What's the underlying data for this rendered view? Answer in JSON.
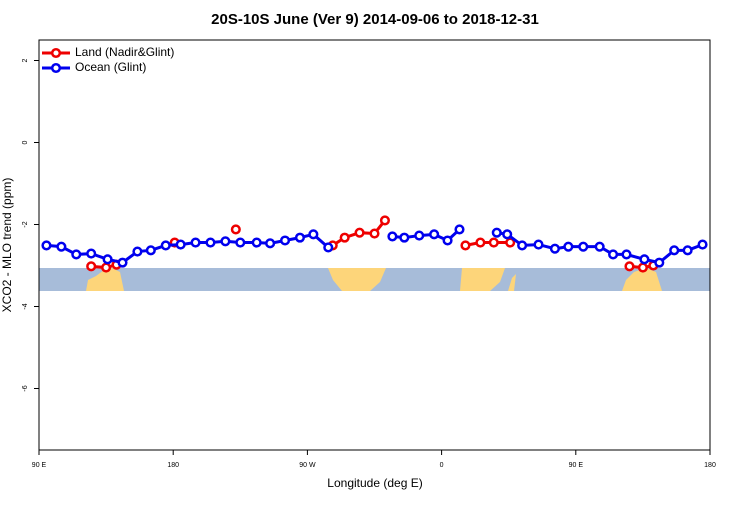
{
  "chart_data": {
    "type": "line",
    "title": "20S-10S June (Ver 9)   2014-09-06 to 2018-12-31",
    "x_label": "Longitude (deg E)",
    "y_label": "XCO2 - MLO trend (ppm)",
    "xlim": [
      90,
      540
    ],
    "ylim": [
      -7.5,
      2.5
    ],
    "xticks": [
      {
        "value": 90,
        "label": "90 E"
      },
      180,
      {
        "value": 270,
        "label": "90 W"
      },
      {
        "value": 360,
        "label": "0"
      },
      {
        "value": 450,
        "label": "90 E"
      },
      180
    ],
    "yticks": [
      2,
      0,
      -2,
      -4,
      -6
    ],
    "legend": "top-left",
    "series": [
      {
        "name": "Land (Nadir&Glint)",
        "color": "#ee0000",
        "x": [
          125,
          135,
          142,
          160,
          181,
          200,
          222,
          255,
          287,
          295,
          305,
          315,
          322,
          350,
          376,
          386,
          395,
          406,
          440,
          486,
          495,
          502
        ],
        "values": [
          -3.02,
          -3.05,
          -2.98,
          null,
          -2.44,
          null,
          -2.12,
          null,
          -2.51,
          -2.32,
          -2.2,
          -2.22,
          -1.9,
          null,
          -2.51,
          -2.44,
          -2.44,
          -2.44,
          null,
          -3.02,
          -3.05,
          -3.0
        ]
      },
      {
        "name": "Ocean (Glint)",
        "color": "#0000ee",
        "x": [
          95,
          105,
          115,
          125,
          136,
          146,
          156,
          165,
          175,
          185,
          195,
          205,
          215,
          225,
          236,
          245,
          255,
          265,
          274,
          284,
          305,
          327,
          335,
          345,
          355,
          364,
          372,
          385,
          397,
          404,
          414,
          425,
          436,
          445,
          455,
          466,
          475,
          484,
          496,
          506,
          516,
          525,
          535
        ],
        "values": [
          -2.51,
          -2.54,
          -2.73,
          -2.71,
          -2.85,
          -2.93,
          -2.66,
          -2.63,
          -2.51,
          -2.49,
          -2.44,
          -2.44,
          -2.41,
          -2.44,
          -2.44,
          -2.46,
          -2.39,
          -2.32,
          -2.24,
          -2.56,
          null,
          -2.29,
          -2.32,
          -2.27,
          -2.24,
          -2.39,
          -2.12,
          null,
          -2.2,
          -2.24,
          -2.51,
          -2.49,
          -2.59,
          -2.54,
          -2.54,
          -2.54,
          -2.73,
          -2.73,
          -2.85,
          -2.93,
          -2.63,
          -2.63,
          -2.49
        ]
      }
    ]
  }
}
